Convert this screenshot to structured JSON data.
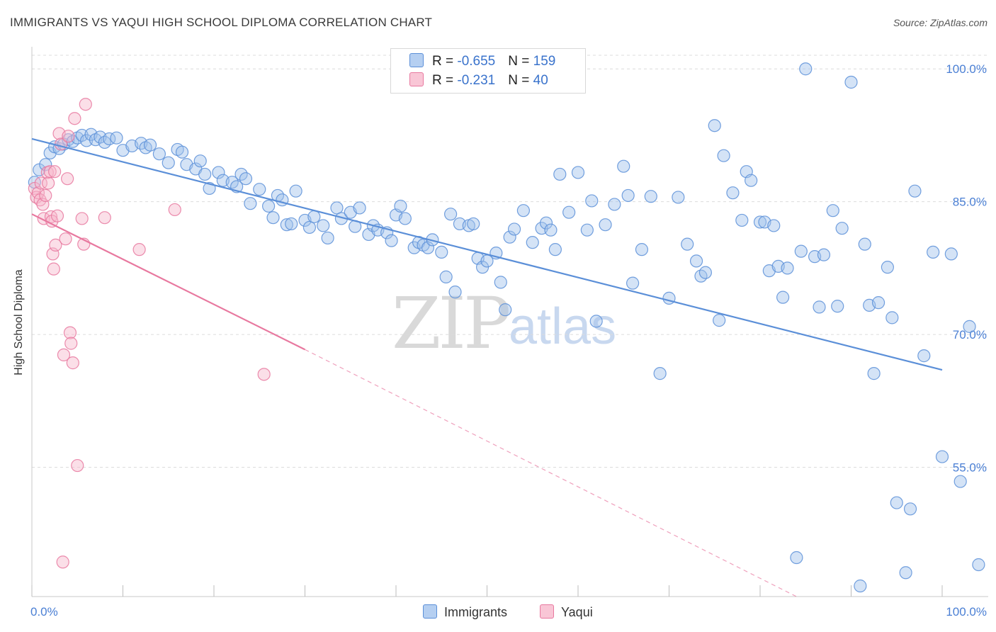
{
  "title": "IMMIGRANTS VS YAQUI HIGH SCHOOL DIPLOMA CORRELATION CHART",
  "source": "Source: ZipAtlas.com",
  "watermark": {
    "zip": "ZIP",
    "atlas": "atlas"
  },
  "legend": {
    "immigrants": {
      "r_label": "R = ",
      "r_value": "-0.655",
      "n_label": "N = ",
      "n_value": "159",
      "color": "#8fb5e8"
    },
    "yaqui": {
      "r_label": "R = ",
      "r_value": "-0.231",
      "n_label": "N = ",
      "n_value": "40",
      "color": "#f4a9c0"
    }
  },
  "bottom_legend": {
    "immigrants": "Immigrants",
    "yaqui": "Yaqui"
  },
  "chart_data": {
    "type": "scatter",
    "title": "IMMIGRANTS VS YAQUI HIGH SCHOOL DIPLOMA CORRELATION CHART",
    "xlabel": "",
    "ylabel": "High School Diploma",
    "xlim": [
      0,
      100
    ],
    "ylim": [
      40.4,
      102.5
    ],
    "x_tick_labels": [
      "0.0%",
      "100.0%"
    ],
    "y_ticks": [
      55,
      70,
      85,
      100
    ],
    "y_tick_labels": [
      "55.0%",
      "70.0%",
      "85.0%",
      "100.0%"
    ],
    "grid": true,
    "series": [
      {
        "name": "Immigrants",
        "color": "#5b8fd8",
        "fill": "#9fc0ec",
        "trend": {
          "x": [
            0,
            100
          ],
          "y": [
            92.1,
            66.0
          ]
        },
        "points": [
          [
            0.3,
            87.2
          ],
          [
            0.8,
            88.6
          ],
          [
            1.5,
            89.2
          ],
          [
            2,
            90.5
          ],
          [
            2.5,
            91.2
          ],
          [
            3,
            91
          ],
          [
            3.5,
            91.5
          ],
          [
            4,
            92
          ],
          [
            4.5,
            91.8
          ],
          [
            5,
            92.2
          ],
          [
            5.5,
            92.5
          ],
          [
            6,
            91.9
          ],
          [
            6.5,
            92.6
          ],
          [
            7,
            92
          ],
          [
            7.5,
            92.3
          ],
          [
            8,
            91.7
          ],
          [
            8.5,
            92.1
          ],
          [
            9.3,
            92.2
          ],
          [
            10,
            90.8
          ],
          [
            11,
            91.3
          ],
          [
            12,
            91.6
          ],
          [
            12.5,
            91.1
          ],
          [
            13,
            91.4
          ],
          [
            14,
            90.4
          ],
          [
            15,
            89.4
          ],
          [
            16,
            90.9
          ],
          [
            16.5,
            90.6
          ],
          [
            17,
            89.2
          ],
          [
            18,
            88.7
          ],
          [
            18.5,
            89.6
          ],
          [
            19,
            88.1
          ],
          [
            19.5,
            86.5
          ],
          [
            20.5,
            88.3
          ],
          [
            21,
            87.4
          ],
          [
            22,
            87.2
          ],
          [
            22.5,
            86.7
          ],
          [
            23,
            88.1
          ],
          [
            23.5,
            87.6
          ],
          [
            24,
            84.8
          ],
          [
            25,
            86.4
          ],
          [
            26,
            84.5
          ],
          [
            26.5,
            83.2
          ],
          [
            27,
            85.7
          ],
          [
            27.5,
            85.2
          ],
          [
            28,
            82.4
          ],
          [
            28.5,
            82.5
          ],
          [
            29,
            86.2
          ],
          [
            30,
            82.9
          ],
          [
            30.5,
            82.1
          ],
          [
            31,
            83.3
          ],
          [
            32,
            82.3
          ],
          [
            32.5,
            80.9
          ],
          [
            33.5,
            84.3
          ],
          [
            34,
            83.1
          ],
          [
            35,
            83.8
          ],
          [
            35.5,
            82.2
          ],
          [
            36,
            84.3
          ],
          [
            37,
            81.3
          ],
          [
            37.5,
            82.3
          ],
          [
            38,
            81.8
          ],
          [
            39,
            81.5
          ],
          [
            39.5,
            80.6
          ],
          [
            40,
            83.5
          ],
          [
            40.5,
            84.5
          ],
          [
            41,
            83.1
          ],
          [
            42,
            79.8
          ],
          [
            42.5,
            80.4
          ],
          [
            43,
            80.1
          ],
          [
            43.5,
            79.8
          ],
          [
            44,
            80.7
          ],
          [
            45,
            79.3
          ],
          [
            45.5,
            76.5
          ],
          [
            46,
            83.6
          ],
          [
            46.5,
            74.8
          ],
          [
            47,
            82.5
          ],
          [
            48,
            82.3
          ],
          [
            48.5,
            82.5
          ],
          [
            49,
            78.6
          ],
          [
            49.5,
            77.6
          ],
          [
            50,
            78.3
          ],
          [
            51,
            79.2
          ],
          [
            51.5,
            75.9
          ],
          [
            52,
            72.8
          ],
          [
            52.5,
            81
          ],
          [
            53,
            81.9
          ],
          [
            54,
            84
          ],
          [
            55,
            80.4
          ],
          [
            56,
            82
          ],
          [
            56.5,
            82.6
          ],
          [
            57,
            81.8
          ],
          [
            57.5,
            79.6
          ],
          [
            58,
            88.1
          ],
          [
            59,
            83.8
          ],
          [
            60,
            88.3
          ],
          [
            61,
            81.8
          ],
          [
            61.5,
            85.1
          ],
          [
            62,
            71.5
          ],
          [
            63,
            82.4
          ],
          [
            64,
            84.7
          ],
          [
            65,
            89
          ],
          [
            65.5,
            85.7
          ],
          [
            66,
            75.8
          ],
          [
            67,
            79.6
          ],
          [
            68,
            85.6
          ],
          [
            69,
            65.6
          ],
          [
            70,
            74.1
          ],
          [
            71,
            85.5
          ],
          [
            72,
            80.2
          ],
          [
            73,
            78.3
          ],
          [
            73.5,
            76.6
          ],
          [
            74,
            77
          ],
          [
            75,
            93.6
          ],
          [
            75.5,
            71.6
          ],
          [
            76,
            90.2
          ],
          [
            77,
            86
          ],
          [
            78,
            82.9
          ],
          [
            78.5,
            88.4
          ],
          [
            79,
            87.4
          ],
          [
            80,
            82.7
          ],
          [
            80.5,
            82.7
          ],
          [
            81,
            77.2
          ],
          [
            81.5,
            82.3
          ],
          [
            82,
            77.7
          ],
          [
            82.5,
            74.2
          ],
          [
            83,
            77.5
          ],
          [
            84,
            44.8
          ],
          [
            84.5,
            79.4
          ],
          [
            85,
            100
          ],
          [
            86,
            78.8
          ],
          [
            86.5,
            73.1
          ],
          [
            87,
            79
          ],
          [
            88,
            84
          ],
          [
            88.5,
            73.2
          ],
          [
            89,
            82
          ],
          [
            90,
            98.5
          ],
          [
            91,
            41.6
          ],
          [
            91.5,
            80.2
          ],
          [
            92,
            73.3
          ],
          [
            92.5,
            65.6
          ],
          [
            93,
            73.6
          ],
          [
            94,
            77.6
          ],
          [
            94.5,
            71.9
          ],
          [
            95,
            51
          ],
          [
            96,
            43.1
          ],
          [
            96.5,
            50.3
          ],
          [
            97,
            86.2
          ],
          [
            98,
            67.6
          ],
          [
            99,
            79.3
          ],
          [
            100,
            56.2
          ],
          [
            101,
            79.1
          ],
          [
            102,
            53.4
          ],
          [
            103,
            70.9
          ],
          [
            104,
            44
          ]
        ]
      },
      {
        "name": "Yaqui",
        "color": "#e8789f",
        "fill": "#f6b8cb",
        "trend": {
          "x": [
            0,
            30
          ],
          "y": [
            83.6,
            68.3
          ]
        },
        "trend_extended": {
          "x": [
            30,
            84
          ],
          "y": [
            68.3,
            40.4
          ]
        },
        "points": [
          [
            0.3,
            86.5
          ],
          [
            0.5,
            85.5
          ],
          [
            0.7,
            86
          ],
          [
            0.9,
            85.2
          ],
          [
            1,
            87.1
          ],
          [
            1.2,
            84.7
          ],
          [
            1.3,
            83.1
          ],
          [
            1.5,
            85.7
          ],
          [
            1.7,
            88.3
          ],
          [
            1.8,
            87.1
          ],
          [
            2,
            88.4
          ],
          [
            2.1,
            83.3
          ],
          [
            2.2,
            82.8
          ],
          [
            2.3,
            79.1
          ],
          [
            2.4,
            77.4
          ],
          [
            2.5,
            88.4
          ],
          [
            2.6,
            80.1
          ],
          [
            2.8,
            83.4
          ],
          [
            3,
            92.7
          ],
          [
            3.2,
            91.5
          ],
          [
            3.4,
            44.3
          ],
          [
            3.5,
            67.7
          ],
          [
            3.7,
            80.8
          ],
          [
            3.9,
            87.6
          ],
          [
            4,
            92.4
          ],
          [
            4.2,
            70.2
          ],
          [
            4.3,
            69
          ],
          [
            4.5,
            66.8
          ],
          [
            4.7,
            94.4
          ],
          [
            5,
            55.2
          ],
          [
            5.5,
            83.1
          ],
          [
            5.7,
            80.2
          ],
          [
            5.9,
            96
          ],
          [
            8,
            83.2
          ],
          [
            11.8,
            79.6
          ],
          [
            15.7,
            84.1
          ],
          [
            25.5,
            65.5
          ]
        ]
      }
    ]
  }
}
